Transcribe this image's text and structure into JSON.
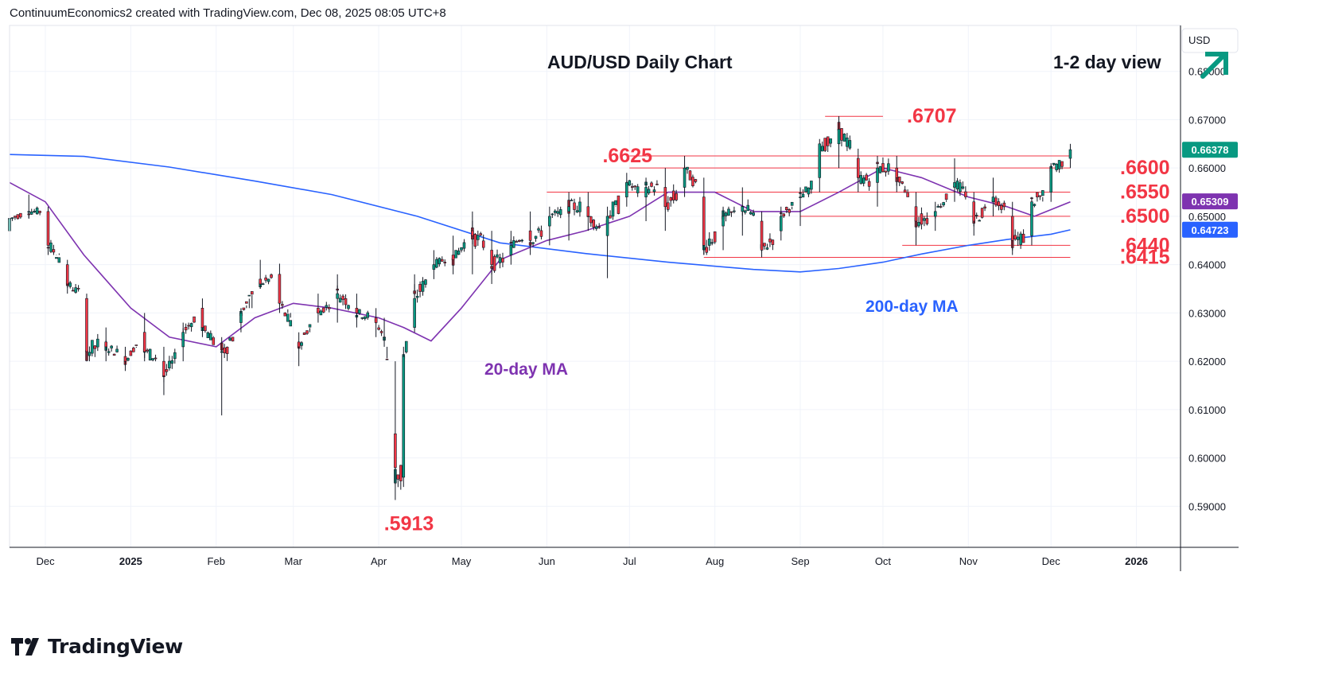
{
  "header": {
    "attribution": "ContinuumEconomics2 created with TradingView.com, Dec 08, 2025 08:05 UTC+8"
  },
  "brand": {
    "name": "TradingView"
  },
  "colors": {
    "candle_up": "#089981",
    "candle_down": "#f23645",
    "ma20": "#7e33b0",
    "ma200": "#2962ff",
    "level": "#f23645"
  },
  "chart_data": {
    "type": "candlestick",
    "title": "AUD/USD Daily Chart",
    "view_label": "1-2 day view",
    "view_icon": "arrow-up-right-icon",
    "currency": "USD",
    "ylim": [
      0.5815,
      0.6895
    ],
    "y_ticks": [
      "0.68000",
      "0.67000",
      "0.66000",
      "0.65000",
      "0.64000",
      "0.63000",
      "0.62000",
      "0.61000",
      "0.60000",
      "0.59000"
    ],
    "x_ticks": [
      "Dec",
      "2025",
      "Feb",
      "Mar",
      "Apr",
      "May",
      "Jun",
      "Jul",
      "Aug",
      "Sep",
      "Oct",
      "Nov",
      "Dec",
      "2026"
    ],
    "price_badges": [
      {
        "value": "0.66378",
        "series": "AUD/USD last"
      },
      {
        "value": "0.65309",
        "series": "20-day MA"
      },
      {
        "value": "0.64723",
        "series": "200-day MA"
      }
    ],
    "levels": [
      {
        "label": ".6707",
        "value": 0.6707
      },
      {
        "label": ".6625",
        "value": 0.6625
      },
      {
        "label": ".6600",
        "value": 0.66
      },
      {
        "label": ".6550",
        "value": 0.655
      },
      {
        "label": ".6500",
        "value": 0.65
      },
      {
        "label": ".6440",
        "value": 0.644
      },
      {
        "label": ".6415",
        "value": 0.6415
      },
      {
        "label": ".5913",
        "value": 0.5913
      }
    ],
    "series": [
      {
        "name": "200-day MA",
        "points": [
          [
            "2024-11-18",
            0.6628
          ],
          [
            "2024-12-15",
            0.6624
          ],
          [
            "2025-01-15",
            0.6602
          ],
          [
            "2025-02-15",
            0.6573
          ],
          [
            "2025-03-15",
            0.6545
          ],
          [
            "2025-04-15",
            0.65
          ],
          [
            "2025-05-15",
            0.6445
          ],
          [
            "2025-06-15",
            0.6423
          ],
          [
            "2025-07-15",
            0.6405
          ],
          [
            "2025-08-15",
            0.639
          ],
          [
            "2025-09-01",
            0.6385
          ],
          [
            "2025-09-15",
            0.6392
          ],
          [
            "2025-10-01",
            0.6405
          ],
          [
            "2025-10-15",
            0.6422
          ],
          [
            "2025-11-01",
            0.644
          ],
          [
            "2025-11-15",
            0.6452
          ],
          [
            "2025-12-01",
            0.6463
          ],
          [
            "2025-12-08",
            0.6472
          ]
        ]
      },
      {
        "name": "20-day MA",
        "points": [
          [
            "2024-11-18",
            0.657
          ],
          [
            "2024-12-01",
            0.653
          ],
          [
            "2024-12-15",
            0.642
          ],
          [
            "2025-01-01",
            0.631
          ],
          [
            "2025-01-15",
            0.625
          ],
          [
            "2025-02-01",
            0.623
          ],
          [
            "2025-02-15",
            0.629
          ],
          [
            "2025-03-01",
            0.632
          ],
          [
            "2025-03-15",
            0.631
          ],
          [
            "2025-04-01",
            0.629
          ],
          [
            "2025-04-10",
            0.627
          ],
          [
            "2025-04-20",
            0.6242
          ],
          [
            "2025-05-01",
            0.631
          ],
          [
            "2025-05-15",
            0.641
          ],
          [
            "2025-06-01",
            0.645
          ],
          [
            "2025-06-15",
            0.647
          ],
          [
            "2025-07-01",
            0.65
          ],
          [
            "2025-07-15",
            0.655
          ],
          [
            "2025-08-01",
            0.655
          ],
          [
            "2025-08-15",
            0.651
          ],
          [
            "2025-09-01",
            0.651
          ],
          [
            "2025-09-15",
            0.655
          ],
          [
            "2025-10-01",
            0.66
          ],
          [
            "2025-10-15",
            0.658
          ],
          [
            "2025-11-01",
            0.654
          ],
          [
            "2025-11-15",
            0.652
          ],
          [
            "2025-11-25",
            0.65
          ],
          [
            "2025-12-08",
            0.653
          ]
        ]
      }
    ],
    "ohlc_anchors": [
      [
        "2024-11-18",
        0.647,
        0.65,
        0.6455,
        0.6495
      ],
      [
        "2024-11-25",
        0.651,
        0.6545,
        0.6495,
        0.651
      ],
      [
        "2024-12-02",
        0.651,
        0.652,
        0.642,
        0.644
      ],
      [
        "2024-12-09",
        0.64,
        0.641,
        0.634,
        0.636
      ],
      [
        "2024-12-16",
        0.633,
        0.634,
        0.62,
        0.622
      ],
      [
        "2024-12-23",
        0.624,
        0.627,
        0.62,
        0.623
      ],
      [
        "2024-12-30",
        0.621,
        0.623,
        0.618,
        0.62
      ],
      [
        "2025-01-06",
        0.626,
        0.63,
        0.62,
        0.622
      ],
      [
        "2025-01-13",
        0.62,
        0.623,
        0.613,
        0.617
      ],
      [
        "2025-01-20",
        0.623,
        0.628,
        0.62,
        0.626
      ],
      [
        "2025-01-27",
        0.631,
        0.633,
        0.625,
        0.627
      ],
      [
        "2025-02-03",
        0.622,
        0.625,
        0.6088,
        0.622
      ],
      [
        "2025-02-10",
        0.628,
        0.631,
        0.626,
        0.63
      ],
      [
        "2025-02-17",
        0.637,
        0.641,
        0.635,
        0.636
      ],
      [
        "2025-02-24",
        0.638,
        0.6402,
        0.63,
        0.632
      ],
      [
        "2025-03-03",
        0.624,
        0.626,
        0.619,
        0.623
      ],
      [
        "2025-03-10",
        0.631,
        0.634,
        0.628,
        0.63
      ],
      [
        "2025-03-17",
        0.633,
        0.638,
        0.628,
        0.634
      ],
      [
        "2025-03-24",
        0.631,
        0.634,
        0.627,
        0.63
      ],
      [
        "2025-03-31",
        0.629,
        0.631,
        0.625,
        0.628
      ],
      [
        "2025-04-03",
        0.625,
        0.629,
        0.623,
        0.625
      ],
      [
        "2025-04-07",
        0.605,
        0.62,
        0.5913,
        0.598
      ],
      [
        "2025-04-10",
        0.596,
        0.623,
        0.594,
        0.621
      ],
      [
        "2025-04-14",
        0.627,
        0.638,
        0.626,
        0.633
      ],
      [
        "2025-04-21",
        0.639,
        0.643,
        0.637,
        0.64
      ],
      [
        "2025-04-28",
        0.642,
        0.646,
        0.638,
        0.641
      ],
      [
        "2025-05-05",
        0.647,
        0.651,
        0.638,
        0.646
      ],
      [
        "2025-05-12",
        0.643,
        0.647,
        0.636,
        0.64
      ],
      [
        "2025-05-19",
        0.642,
        0.647,
        0.64,
        0.644
      ],
      [
        "2025-05-26",
        0.647,
        0.651,
        0.642,
        0.645
      ],
      [
        "2025-06-02",
        0.648,
        0.652,
        0.644,
        0.65
      ],
      [
        "2025-06-09",
        0.651,
        0.655,
        0.645,
        0.652
      ],
      [
        "2025-06-16",
        0.652,
        0.655,
        0.647,
        0.65
      ],
      [
        "2025-06-23",
        0.646,
        0.652,
        0.6372,
        0.65
      ],
      [
        "2025-06-30",
        0.654,
        0.659,
        0.652,
        0.657
      ],
      [
        "2025-07-07",
        0.654,
        0.658,
        0.649,
        0.656
      ],
      [
        "2025-07-14",
        0.656,
        0.66,
        0.647,
        0.652
      ],
      [
        "2025-07-21",
        0.656,
        0.6625,
        0.654,
        0.66
      ],
      [
        "2025-07-28",
        0.654,
        0.658,
        0.642,
        0.644
      ],
      [
        "2025-08-04",
        0.648,
        0.652,
        0.643,
        0.65
      ],
      [
        "2025-08-11",
        0.651,
        0.656,
        0.646,
        0.652
      ],
      [
        "2025-08-18",
        0.649,
        0.651,
        0.6415,
        0.643
      ],
      [
        "2025-08-25",
        0.647,
        0.652,
        0.645,
        0.65
      ],
      [
        "2025-09-01",
        0.654,
        0.656,
        0.648,
        0.654
      ],
      [
        "2025-09-08",
        0.658,
        0.666,
        0.655,
        0.665
      ],
      [
        "2025-09-15",
        0.665,
        0.6707,
        0.66,
        0.668
      ],
      [
        "2025-09-22",
        0.662,
        0.664,
        0.655,
        0.658
      ],
      [
        "2025-09-29",
        0.657,
        0.6625,
        0.652,
        0.66
      ],
      [
        "2025-10-06",
        0.66,
        0.6625,
        0.655,
        0.658
      ],
      [
        "2025-10-13",
        0.652,
        0.655,
        0.644,
        0.649
      ],
      [
        "2025-10-20",
        0.65,
        0.653,
        0.647,
        0.651
      ],
      [
        "2025-10-27",
        0.656,
        0.662,
        0.653,
        0.657
      ],
      [
        "2025-11-03",
        0.653,
        0.655,
        0.646,
        0.649
      ],
      [
        "2025-11-10",
        0.653,
        0.658,
        0.65,
        0.654
      ],
      [
        "2025-11-17",
        0.65,
        0.653,
        0.642,
        0.645
      ],
      [
        "2025-11-24",
        0.646,
        0.654,
        0.644,
        0.653
      ],
      [
        "2025-12-01",
        0.655,
        0.661,
        0.653,
        0.66
      ],
      [
        "2025-12-08",
        0.662,
        0.665,
        0.66,
        0.6638
      ]
    ]
  }
}
